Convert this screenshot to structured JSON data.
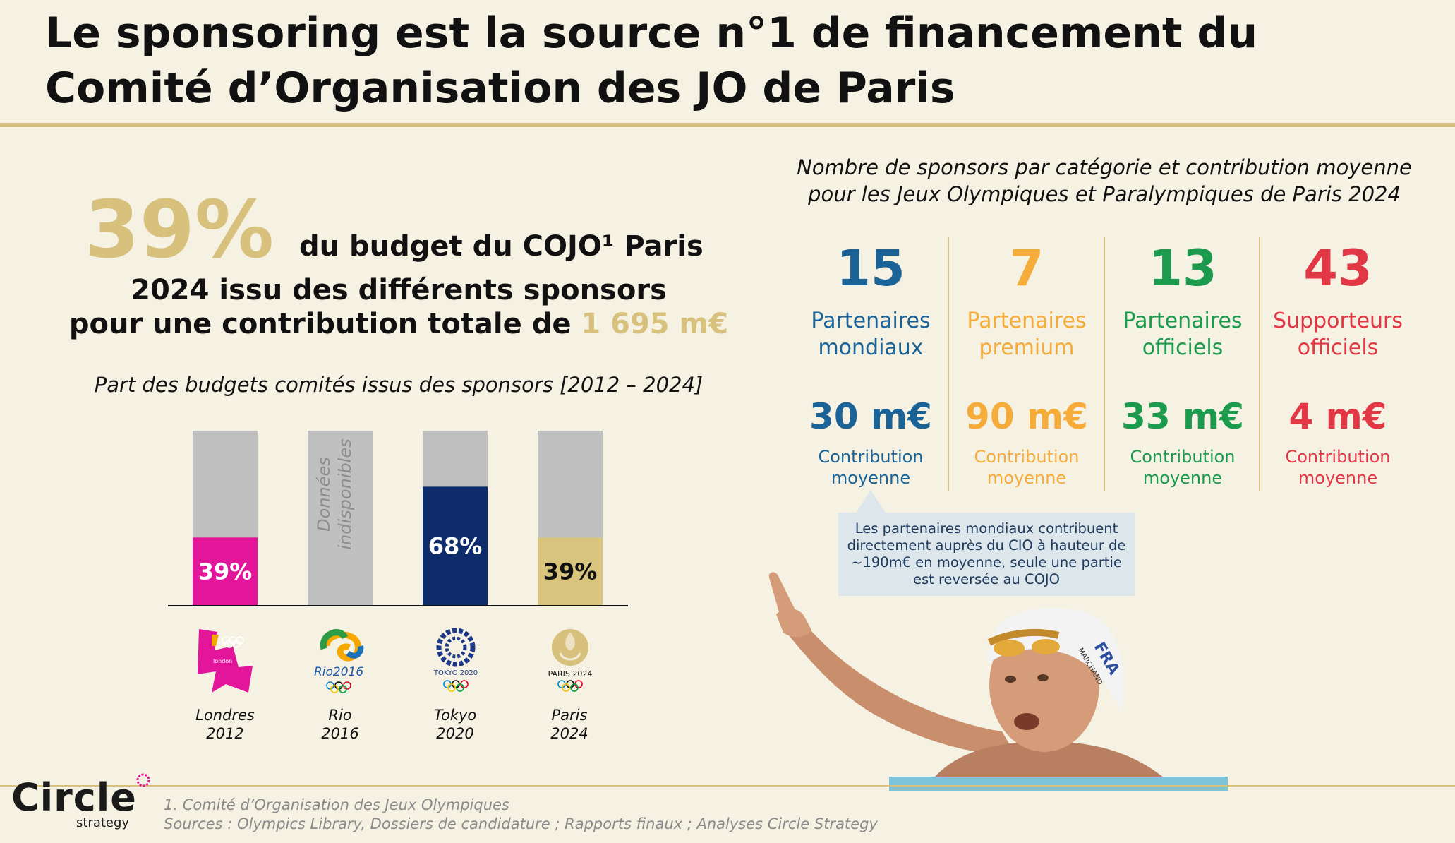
{
  "header": {
    "title_line1": "Le sponsoring est la source n°1 de financement du",
    "title_line2": "Comité d’Organisation des JO de Paris"
  },
  "kpi": {
    "percent": "39%",
    "line1": "du budget du COJO¹ Paris",
    "line2": "2024 issu des différents sponsors",
    "line3_prefix": "pour une contribution totale de ",
    "line3_amount": "1 695 m€"
  },
  "chart_data": {
    "type": "bar",
    "title": "Part des budgets comités issus des sponsors [2012 – 2024]",
    "categories": [
      "Londres 2012",
      "Rio 2016",
      "Tokyo 2020",
      "Paris 2024"
    ],
    "values": [
      39,
      null,
      68,
      39
    ],
    "value_labels": [
      "39%",
      "",
      "68%",
      "39%"
    ],
    "unavailable_label": "Données indisponibles",
    "ylim": [
      0,
      100
    ],
    "colors": [
      "#e3169b",
      "#c0c0c0",
      "#0e2c6b",
      "#d8c47c"
    ],
    "background_color": "#c0c0c0",
    "label_colors": [
      "#ffffff",
      "#8d8d8d",
      "#ffffff",
      "#111111"
    ],
    "grid": false
  },
  "olympics": [
    {
      "city": "Londres",
      "year": "2012",
      "logo": "london-2012-logo"
    },
    {
      "city": "Rio",
      "year": "2016",
      "logo": "rio-2016-logo"
    },
    {
      "city": "Tokyo",
      "year": "2020",
      "logo": "tokyo-2020-logo"
    },
    {
      "city": "Paris",
      "year": "2024",
      "logo": "paris-2024-logo"
    }
  ],
  "logo_text": {
    "london": "london",
    "rio": "Rio2016",
    "tokyo": "TOKYO 2020",
    "paris": "PARIS 2024"
  },
  "sponsors": {
    "title_line1": "Nombre de sponsors par catégorie et contribution moyenne",
    "title_line2": "pour les Jeux Olympiques et Paralympiques de Paris 2024",
    "categories": [
      {
        "count": "15",
        "label1": "Partenaires",
        "label2": "mondiaux",
        "amount": "30 m€",
        "sub1": "Contribution",
        "sub2": "moyenne",
        "color": "#1b6396"
      },
      {
        "count": "7",
        "label1": "Partenaires",
        "label2": "premium",
        "amount": "90 m€",
        "sub1": "Contribution",
        "sub2": "moyenne",
        "color": "#f5ac3a"
      },
      {
        "count": "13",
        "label1": "Partenaires",
        "label2": "officiels",
        "amount": "33 m€",
        "sub1": "Contribution",
        "sub2": "moyenne",
        "color": "#1c9a4d"
      },
      {
        "count": "43",
        "label1": "Supporteurs",
        "label2": "officiels",
        "amount": "4 m€",
        "sub1": "Contribution",
        "sub2": "moyenne",
        "color": "#e23745"
      }
    ],
    "callout": "Les partenaires mondiaux contribuent directement auprès du CIO à hauteur de ~190m€ en moyenne, seule une partie est reversée au COJO"
  },
  "cap_text": "FRA",
  "cap_name": "MARCHAND",
  "footer": {
    "brand": "Circle",
    "brand_sub": "strategy",
    "note1": "1.  Comité d’Organisation des Jeux Olympiques",
    "note2": "Sources : Olympics Library, Dossiers de candidature ; Rapports finaux ; Analyses Circle Strategy"
  }
}
